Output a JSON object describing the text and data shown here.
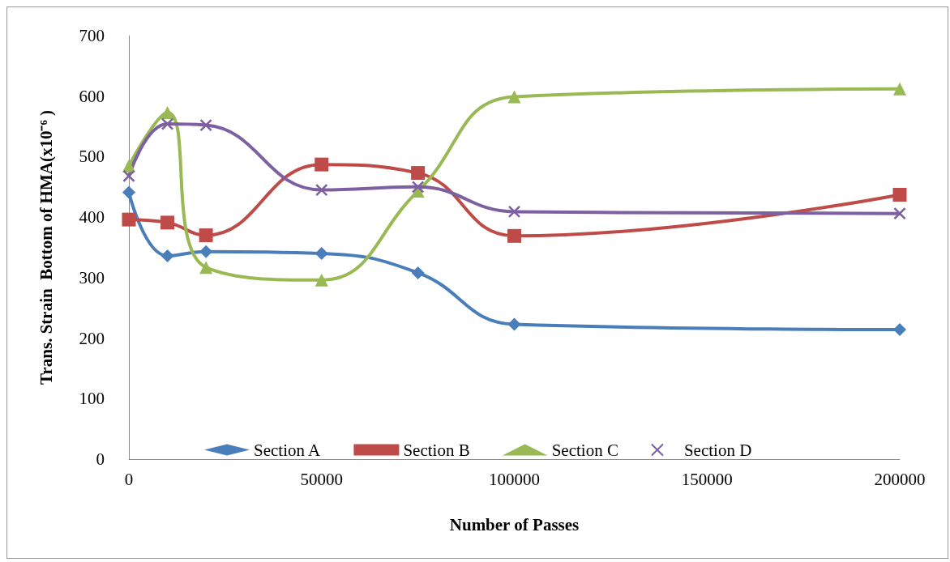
{
  "chart_data": {
    "type": "line",
    "xlabel": "Number of Passes",
    "ylabel": "Trans. Strain  Bottom of HMA(x10⁻⁶ )",
    "x": [
      0,
      10000,
      20000,
      50000,
      75000,
      100000,
      200000
    ],
    "xlim": [
      0,
      200000
    ],
    "xticks": [
      0,
      50000,
      100000,
      150000,
      200000
    ],
    "ylim": [
      0,
      700
    ],
    "yticks": [
      0,
      100,
      200,
      300,
      400,
      500,
      600,
      700
    ],
    "grid": false,
    "legend": "bottom",
    "line_style": "solid",
    "series": [
      {
        "name": "Section A",
        "color": "#4a7ebb",
        "marker": "diamond",
        "values": [
          441,
          336,
          343,
          340,
          308,
          223,
          214
        ]
      },
      {
        "name": "Section B",
        "color": "#be4b48",
        "marker": "square",
        "values": [
          396,
          391,
          370,
          487,
          473,
          369,
          437
        ]
      },
      {
        "name": "Section C",
        "color": "#98b954",
        "marker": "triangle",
        "values": [
          485,
          573,
          317,
          296,
          443,
          599,
          612
        ]
      },
      {
        "name": "Section D",
        "color": "#7d60a0",
        "marker": "cross",
        "values": [
          468,
          554,
          552,
          445,
          450,
          409,
          406
        ]
      }
    ]
  }
}
